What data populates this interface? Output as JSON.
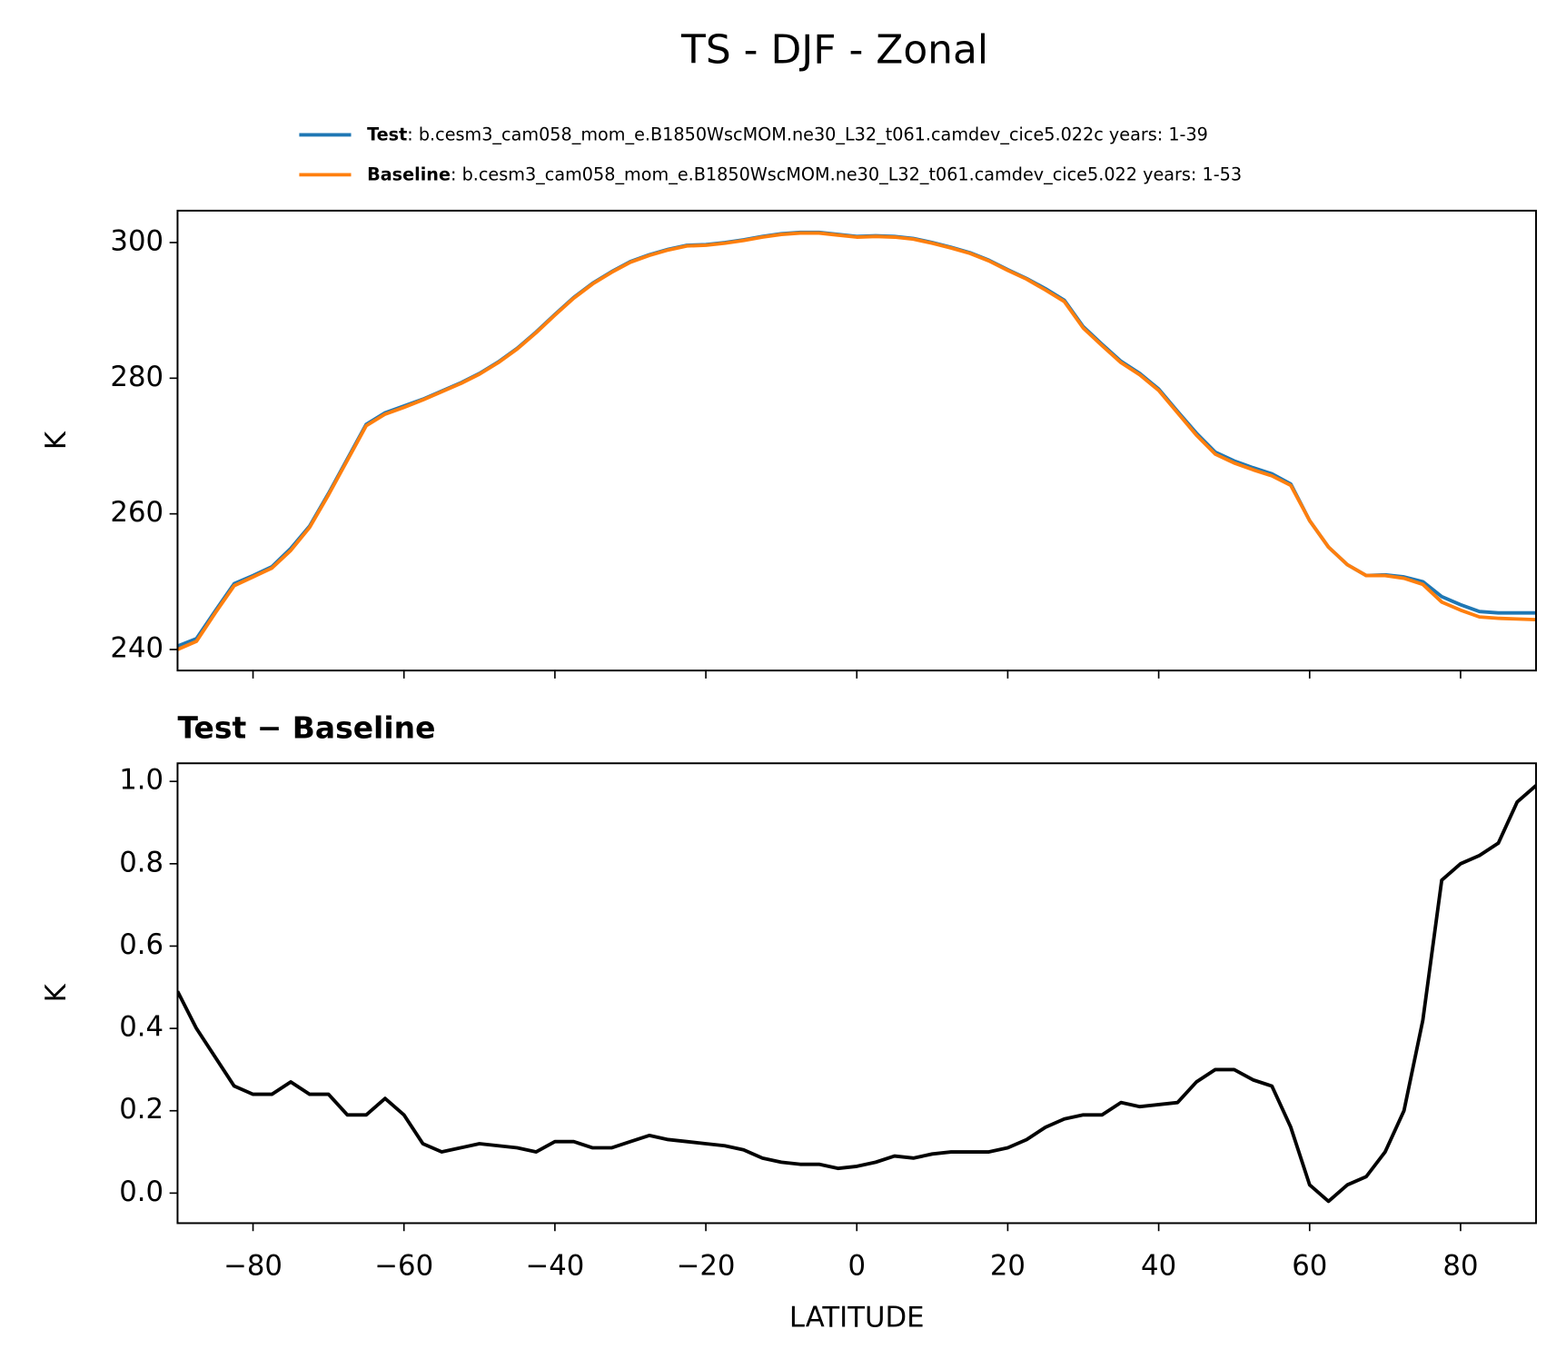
{
  "title": "TS - DJF - Zonal",
  "chart_data": [
    {
      "type": "line",
      "ylabel": "K",
      "x": [
        -90,
        -87.5,
        -85,
        -82.5,
        -80,
        -77.5,
        -75,
        -72.5,
        -70,
        -67.5,
        -65,
        -62.5,
        -60,
        -57.5,
        -55,
        -52.5,
        -50,
        -47.5,
        -45,
        -42.5,
        -40,
        -37.5,
        -35,
        -32.5,
        -30,
        -27.5,
        -25,
        -22.5,
        -20,
        -17.5,
        -15,
        -12.5,
        -10,
        -7.5,
        -5,
        -2.5,
        0,
        2.5,
        5,
        7.5,
        10,
        12.5,
        15,
        17.5,
        20,
        22.5,
        25,
        27.5,
        30,
        32.5,
        35,
        37.5,
        40,
        42.5,
        45,
        47.5,
        50,
        52.5,
        55,
        57.5,
        60,
        62.5,
        65,
        67.5,
        70,
        72.5,
        75,
        77.5,
        80,
        82.5,
        85,
        87.5,
        90
      ],
      "series": [
        {
          "name": "Test",
          "description": ":  b.cesm3_cam058_mom_e.B1850WscMOM.ne30_L32_t061.camdev_cice5.022c  years: 1-39",
          "color": "#1f77b4",
          "values": [
            240.5,
            241.6,
            245.7,
            249.7,
            250.9,
            252.2,
            254.9,
            258.2,
            263.0,
            268.1,
            273.2,
            274.9,
            275.9,
            276.9,
            278.1,
            279.3,
            280.7,
            282.4,
            284.4,
            286.8,
            289.4,
            291.9,
            294.0,
            295.7,
            297.2,
            298.2,
            299.0,
            299.6,
            299.7,
            300.0,
            300.4,
            300.9,
            301.3,
            301.5,
            301.5,
            301.2,
            300.9,
            301.0,
            300.9,
            300.6,
            300.0,
            299.3,
            298.5,
            297.4,
            296.0,
            294.7,
            293.2,
            291.5,
            287.6,
            285.0,
            282.5,
            280.7,
            278.4,
            275.1,
            271.9,
            269.1,
            267.8,
            266.8,
            265.9,
            264.4,
            259.0,
            255.1,
            252.5,
            250.9,
            251.0,
            250.7,
            250.0,
            247.8,
            246.6,
            245.6,
            245.4,
            245.4,
            245.4
          ]
        },
        {
          "name": "Baseline",
          "description": ":  b.cesm3_cam058_mom_e.B1850WscMOM.ne30_L32_t061.camdev_cice5.022  years: 1-53",
          "color": "#ff7f0e",
          "values": [
            240.0,
            241.2,
            245.4,
            249.4,
            250.7,
            252.0,
            254.6,
            258.0,
            262.8,
            267.9,
            273.0,
            274.7,
            275.7,
            276.8,
            278.0,
            279.2,
            280.6,
            282.3,
            284.3,
            286.7,
            289.3,
            291.8,
            293.9,
            295.6,
            297.1,
            298.1,
            298.9,
            299.5,
            299.6,
            299.9,
            300.3,
            300.8,
            301.2,
            301.4,
            301.4,
            301.1,
            300.8,
            300.9,
            300.8,
            300.5,
            299.9,
            299.2,
            298.4,
            297.3,
            295.9,
            294.6,
            293.0,
            291.3,
            287.4,
            284.8,
            282.3,
            280.5,
            278.2,
            274.9,
            271.6,
            268.8,
            267.5,
            266.5,
            265.6,
            264.2,
            259.0,
            255.1,
            252.5,
            250.9,
            250.9,
            250.5,
            249.6,
            247.0,
            245.8,
            244.8,
            244.6,
            244.5,
            244.4
          ]
        }
      ],
      "xlim": [
        -90,
        90
      ],
      "xticks": [
        -80,
        -60,
        -40,
        -20,
        0,
        20,
        40,
        60,
        80
      ],
      "show_xtick_labels": false,
      "ylim": [
        236.9,
        304.7
      ],
      "yticks": [
        240,
        260,
        280,
        300
      ]
    },
    {
      "type": "line",
      "title": "Test − Baseline",
      "xlabel": "LATITUDE",
      "ylabel": "K",
      "x": [
        -90,
        -87.5,
        -85,
        -82.5,
        -80,
        -77.5,
        -75,
        -72.5,
        -70,
        -67.5,
        -65,
        -62.5,
        -60,
        -57.5,
        -55,
        -52.5,
        -50,
        -47.5,
        -45,
        -42.5,
        -40,
        -37.5,
        -35,
        -32.5,
        -30,
        -27.5,
        -25,
        -22.5,
        -20,
        -17.5,
        -15,
        -12.5,
        -10,
        -7.5,
        -5,
        -2.5,
        0,
        2.5,
        5,
        7.5,
        10,
        12.5,
        15,
        17.5,
        20,
        22.5,
        25,
        27.5,
        30,
        32.5,
        35,
        37.5,
        40,
        42.5,
        45,
        47.5,
        50,
        52.5,
        55,
        57.5,
        60,
        62.5,
        65,
        67.5,
        70,
        72.5,
        75,
        77.5,
        80,
        82.5,
        85,
        87.5,
        90
      ],
      "series": [
        {
          "color": "#000000",
          "values": [
            0.49,
            0.4,
            0.33,
            0.26,
            0.24,
            0.24,
            0.27,
            0.24,
            0.24,
            0.19,
            0.19,
            0.23,
            0.19,
            0.12,
            0.1,
            0.11,
            0.12,
            0.115,
            0.11,
            0.1,
            0.125,
            0.125,
            0.11,
            0.11,
            0.125,
            0.14,
            0.13,
            0.125,
            0.12,
            0.115,
            0.105,
            0.085,
            0.075,
            0.07,
            0.07,
            0.06,
            0.065,
            0.075,
            0.09,
            0.085,
            0.095,
            0.1,
            0.1,
            0.1,
            0.11,
            0.13,
            0.16,
            0.18,
            0.19,
            0.19,
            0.22,
            0.21,
            0.215,
            0.22,
            0.27,
            0.3,
            0.3,
            0.275,
            0.26,
            0.16,
            0.02,
            -0.02,
            0.02,
            0.04,
            0.1,
            0.2,
            0.42,
            0.76,
            0.8,
            0.82,
            0.85,
            0.95,
            0.99
          ]
        }
      ],
      "xlim": [
        -90,
        90
      ],
      "xticks": [
        {
          "value": -80,
          "label": "−80"
        },
        {
          "value": -60,
          "label": "−60"
        },
        {
          "value": -40,
          "label": "−40"
        },
        {
          "value": -20,
          "label": "−20"
        },
        0,
        20,
        40,
        60,
        80
      ],
      "ylim": [
        -0.073,
        1.044
      ],
      "yticks": [
        {
          "value": 0,
          "label": "0.0"
        },
        0.2,
        0.4,
        0.6,
        0.8,
        {
          "value": 1,
          "label": "1.0"
        }
      ]
    }
  ]
}
